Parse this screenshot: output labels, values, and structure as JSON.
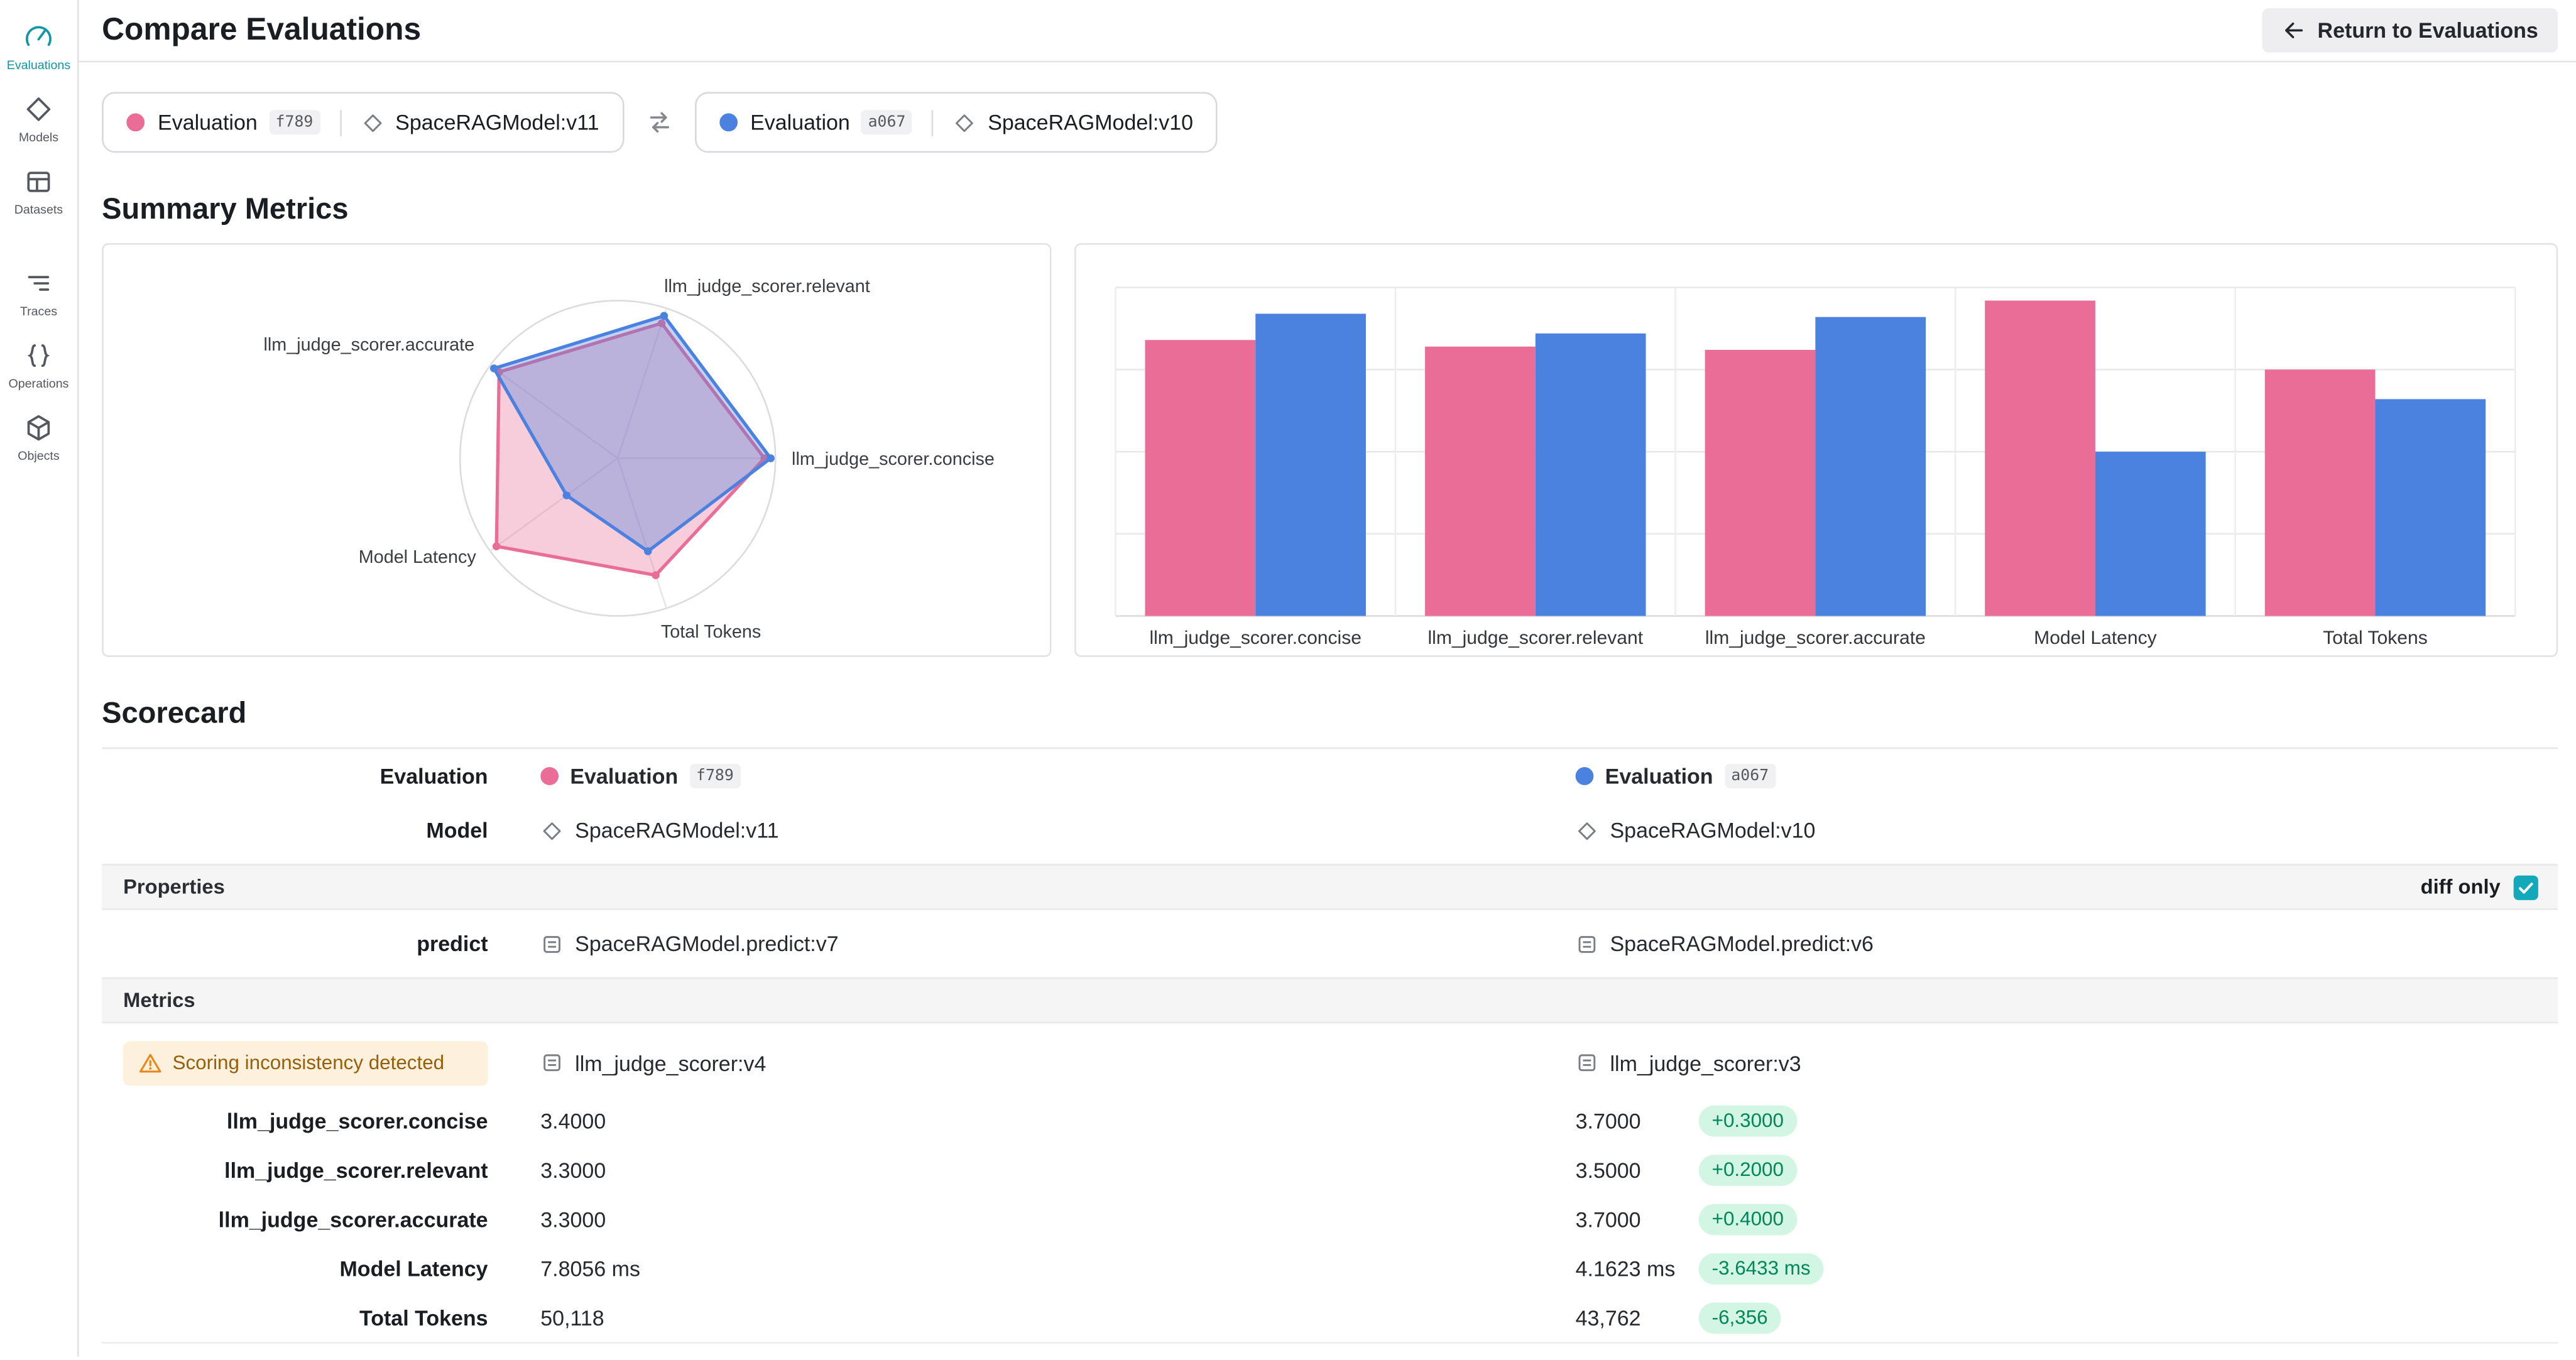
{
  "colors": {
    "pink": "#e96d97",
    "blue": "#4b82e0",
    "teal": "#13a9ba",
    "green_badge_bg": "#d3f5e3",
    "green_badge_text": "#00875a",
    "warning_bg": "#fdf0dc",
    "warning_text": "#96600a"
  },
  "sidebar": {
    "items": [
      {
        "label": "Evaluations",
        "icon": "evaluations-icon",
        "active": true
      },
      {
        "label": "Models",
        "icon": "models-icon",
        "active": false
      },
      {
        "label": "Datasets",
        "icon": "datasets-icon",
        "active": false
      },
      {
        "label": "Traces",
        "icon": "traces-icon",
        "active": false
      },
      {
        "label": "Operations",
        "icon": "operations-icon",
        "active": false
      },
      {
        "label": "Objects",
        "icon": "objects-icon",
        "active": false
      }
    ]
  },
  "header": {
    "title": "Compare Evaluations",
    "return_button_label": "Return to Evaluations"
  },
  "compare_bar": {
    "left": {
      "name": "Evaluation",
      "id": "f789",
      "model": "SpaceRAGModel:v11"
    },
    "right": {
      "name": "Evaluation",
      "id": "a067",
      "model": "SpaceRAGModel:v10"
    }
  },
  "summary": {
    "title": "Summary Metrics"
  },
  "chart_data": [
    {
      "type": "radar",
      "start_angle": -72,
      "axes": [
        "llm_judge_scorer.relevant",
        "llm_judge_scorer.concise",
        "Total Tokens",
        "Model Latency",
        "llm_judge_scorer.accurate"
      ],
      "series": [
        {
          "name": "Evaluation f789",
          "color": "#e96d97",
          "values": [
            0.9,
            0.93,
            0.78,
            0.95,
            0.93
          ]
        },
        {
          "name": "Evaluation a067",
          "color": "#4b82e0",
          "values": [
            0.95,
            0.97,
            0.62,
            0.4,
            0.97
          ]
        }
      ],
      "range": [
        0,
        1
      ],
      "legend": "none"
    },
    {
      "type": "bar",
      "categories": [
        "llm_judge_scorer.concise",
        "llm_judge_scorer.relevant",
        "llm_judge_scorer.accurate",
        "Model Latency",
        "Total Tokens"
      ],
      "series": [
        {
          "name": "Evaluation f789",
          "color": "#e96d97",
          "values": [
            0.84,
            0.82,
            0.81,
            0.96,
            0.75
          ]
        },
        {
          "name": "Evaluation a067",
          "color": "#4b82e0",
          "values": [
            0.92,
            0.86,
            0.91,
            0.5,
            0.66
          ]
        }
      ],
      "ylim": [
        0,
        1
      ],
      "grid": true,
      "legend": "none"
    }
  ],
  "scorecard": {
    "title": "Scorecard",
    "rows": {
      "evaluation": {
        "label": "Evaluation",
        "left": {
          "name": "Evaluation",
          "id": "f789"
        },
        "right": {
          "name": "Evaluation",
          "id": "a067"
        }
      },
      "model": {
        "label": "Model",
        "left": "SpaceRAGModel:v11",
        "right": "SpaceRAGModel:v10"
      },
      "properties_band": {
        "label": "Properties",
        "diff_only": "diff only",
        "diff_only_checked": true
      },
      "predict": {
        "label": "predict",
        "left": "SpaceRAGModel.predict:v7",
        "right": "SpaceRAGModel.predict:v6"
      },
      "metrics_band": {
        "label": "Metrics"
      },
      "scorer": {
        "warning": "Scoring inconsistency detected",
        "left": "llm_judge_scorer:v4",
        "right": "llm_judge_scorer:v3"
      },
      "metrics": [
        {
          "label": "llm_judge_scorer.concise",
          "left": "3.4000",
          "right": "3.7000",
          "diff": "+0.3000"
        },
        {
          "label": "llm_judge_scorer.relevant",
          "left": "3.3000",
          "right": "3.5000",
          "diff": "+0.2000"
        },
        {
          "label": "llm_judge_scorer.accurate",
          "left": "3.3000",
          "right": "3.7000",
          "diff": "+0.4000"
        },
        {
          "label": "Model Latency",
          "left": "7.8056 ms",
          "right": "4.1623 ms",
          "diff": "-3.6433 ms"
        },
        {
          "label": "Total Tokens",
          "left": "50,118",
          "right": "43,762",
          "diff": "-6,356"
        }
      ]
    }
  }
}
